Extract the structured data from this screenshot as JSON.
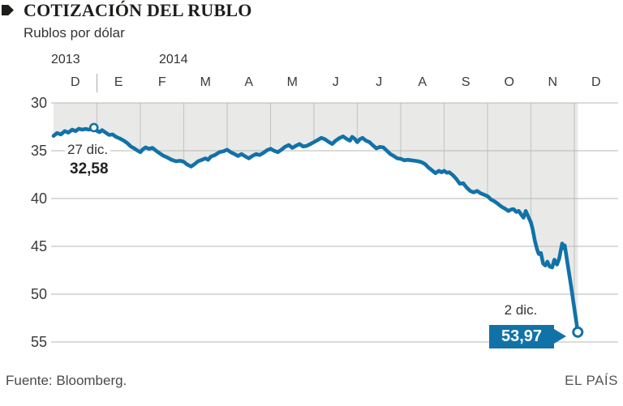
{
  "header": {
    "title": "COTIZACIÓN DEL RUBLO",
    "subtitle": "Rublos por dólar"
  },
  "footer": {
    "source": "Fuente: Bloomberg.",
    "brand": "EL PAÍS"
  },
  "chart_data": {
    "type": "line",
    "title": "COTIZACIÓN DEL RUBLO",
    "ylabel": "Rublos por dólar",
    "y_inverted": true,
    "ylim": [
      30,
      55
    ],
    "yticks": [
      30,
      35,
      40,
      45,
      50,
      55
    ],
    "years": [
      "2013",
      "2014"
    ],
    "month_labels": [
      "D",
      "E",
      "F",
      "M",
      "A",
      "M",
      "J",
      "J",
      "A",
      "S",
      "O",
      "N",
      "D"
    ],
    "grid": true,
    "colors": {
      "line": "#1172a8",
      "area_fill": "#e9e9e7",
      "grid_h": "#b7b7b5",
      "grid_v": "#c8c8c6",
      "callout_bg": "#1172a8",
      "callout_text": "#ffffff"
    },
    "series": [
      {
        "name": "Rublos por dólar",
        "points": [
          [
            0.0,
            33.45
          ],
          [
            0.08,
            33.15
          ],
          [
            0.17,
            33.3
          ],
          [
            0.26,
            32.95
          ],
          [
            0.34,
            33.1
          ],
          [
            0.43,
            32.8
          ],
          [
            0.51,
            32.95
          ],
          [
            0.58,
            32.7
          ],
          [
            0.66,
            32.8
          ],
          [
            0.74,
            32.72
          ],
          [
            0.82,
            32.8
          ],
          [
            0.93,
            32.58
          ],
          [
            1.0,
            32.92
          ],
          [
            1.06,
            33.05
          ],
          [
            1.12,
            32.85
          ],
          [
            1.2,
            33.1
          ],
          [
            1.28,
            33.35
          ],
          [
            1.36,
            33.3
          ],
          [
            1.44,
            33.55
          ],
          [
            1.52,
            33.7
          ],
          [
            1.62,
            33.95
          ],
          [
            1.7,
            34.2
          ],
          [
            1.78,
            34.55
          ],
          [
            1.86,
            34.75
          ],
          [
            1.94,
            35.0
          ],
          [
            2.0,
            35.15
          ],
          [
            2.06,
            34.85
          ],
          [
            2.12,
            34.65
          ],
          [
            2.2,
            34.8
          ],
          [
            2.28,
            34.7
          ],
          [
            2.36,
            35.0
          ],
          [
            2.44,
            35.25
          ],
          [
            2.52,
            35.5
          ],
          [
            2.62,
            35.7
          ],
          [
            2.72,
            35.95
          ],
          [
            2.82,
            36.1
          ],
          [
            2.92,
            36.05
          ],
          [
            3.0,
            36.15
          ],
          [
            3.08,
            36.45
          ],
          [
            3.17,
            36.65
          ],
          [
            3.25,
            36.4
          ],
          [
            3.33,
            36.1
          ],
          [
            3.42,
            35.95
          ],
          [
            3.5,
            35.8
          ],
          [
            3.56,
            35.95
          ],
          [
            3.63,
            35.6
          ],
          [
            3.72,
            35.45
          ],
          [
            3.82,
            35.15
          ],
          [
            3.92,
            35.05
          ],
          [
            4.0,
            34.9
          ],
          [
            4.08,
            35.15
          ],
          [
            4.17,
            35.35
          ],
          [
            4.25,
            35.55
          ],
          [
            4.33,
            35.35
          ],
          [
            4.42,
            35.6
          ],
          [
            4.5,
            35.8
          ],
          [
            4.58,
            35.55
          ],
          [
            4.67,
            35.35
          ],
          [
            4.75,
            35.45
          ],
          [
            4.83,
            35.25
          ],
          [
            4.92,
            34.95
          ],
          [
            5.0,
            34.8
          ],
          [
            5.08,
            35.0
          ],
          [
            5.17,
            35.15
          ],
          [
            5.25,
            34.9
          ],
          [
            5.33,
            34.6
          ],
          [
            5.42,
            34.4
          ],
          [
            5.5,
            34.7
          ],
          [
            5.58,
            34.5
          ],
          [
            5.67,
            34.3
          ],
          [
            5.75,
            34.55
          ],
          [
            5.83,
            34.5
          ],
          [
            5.92,
            34.3
          ],
          [
            6.0,
            34.1
          ],
          [
            6.08,
            33.9
          ],
          [
            6.17,
            33.65
          ],
          [
            6.25,
            33.8
          ],
          [
            6.33,
            34.05
          ],
          [
            6.42,
            34.3
          ],
          [
            6.5,
            33.95
          ],
          [
            6.58,
            33.7
          ],
          [
            6.67,
            33.5
          ],
          [
            6.75,
            33.75
          ],
          [
            6.83,
            33.95
          ],
          [
            6.88,
            33.55
          ],
          [
            6.94,
            33.75
          ],
          [
            7.0,
            34.1
          ],
          [
            7.06,
            33.8
          ],
          [
            7.12,
            33.65
          ],
          [
            7.2,
            33.95
          ],
          [
            7.28,
            34.1
          ],
          [
            7.36,
            34.45
          ],
          [
            7.44,
            34.75
          ],
          [
            7.52,
            34.6
          ],
          [
            7.6,
            34.65
          ],
          [
            7.68,
            35.0
          ],
          [
            7.76,
            35.35
          ],
          [
            7.84,
            35.55
          ],
          [
            7.92,
            35.8
          ],
          [
            8.0,
            35.85
          ],
          [
            8.08,
            36.0
          ],
          [
            8.16,
            35.95
          ],
          [
            8.24,
            36.0
          ],
          [
            8.32,
            36.05
          ],
          [
            8.4,
            36.1
          ],
          [
            8.48,
            36.2
          ],
          [
            8.56,
            36.4
          ],
          [
            8.64,
            36.75
          ],
          [
            8.72,
            37.05
          ],
          [
            8.8,
            37.35
          ],
          [
            8.88,
            37.1
          ],
          [
            8.94,
            37.25
          ],
          [
            9.0,
            37.1
          ],
          [
            9.06,
            37.3
          ],
          [
            9.12,
            37.25
          ],
          [
            9.2,
            37.55
          ],
          [
            9.28,
            37.95
          ],
          [
            9.36,
            38.45
          ],
          [
            9.44,
            38.4
          ],
          [
            9.52,
            38.85
          ],
          [
            9.6,
            39.2
          ],
          [
            9.68,
            39.35
          ],
          [
            9.76,
            39.2
          ],
          [
            9.84,
            39.45
          ],
          [
            9.92,
            39.6
          ],
          [
            10.0,
            39.75
          ],
          [
            10.08,
            40.1
          ],
          [
            10.16,
            40.3
          ],
          [
            10.24,
            40.55
          ],
          [
            10.32,
            40.85
          ],
          [
            10.4,
            41.05
          ],
          [
            10.48,
            41.3
          ],
          [
            10.54,
            41.15
          ],
          [
            10.6,
            41.1
          ],
          [
            10.66,
            41.4
          ],
          [
            10.72,
            41.3
          ],
          [
            10.78,
            41.7
          ],
          [
            10.83,
            42.0
          ],
          [
            10.88,
            41.3
          ],
          [
            10.94,
            41.9
          ],
          [
            11.0,
            42.5
          ],
          [
            11.04,
            43.2
          ],
          [
            11.09,
            44.4
          ],
          [
            11.14,
            45.3
          ],
          [
            11.18,
            45.8
          ],
          [
            11.23,
            45.7
          ],
          [
            11.28,
            46.8
          ],
          [
            11.33,
            47.0
          ],
          [
            11.38,
            46.6
          ],
          [
            11.43,
            47.1
          ],
          [
            11.49,
            47.2
          ],
          [
            11.54,
            46.4
          ],
          [
            11.6,
            46.9
          ],
          [
            11.65,
            46.3
          ],
          [
            11.72,
            44.7
          ],
          [
            11.75,
            45.2
          ],
          [
            11.78,
            44.9
          ],
          [
            11.85,
            47.0
          ],
          [
            11.92,
            49.0
          ],
          [
            12.08,
            53.97
          ]
        ]
      }
    ],
    "annotations": [
      {
        "date_label": "27 dic.",
        "value_label": "32,58",
        "m": 0.93,
        "value": 32.58
      },
      {
        "date_label": "2 dic.",
        "value_label": "53,97",
        "m": 12.08,
        "value": 53.97
      }
    ]
  }
}
